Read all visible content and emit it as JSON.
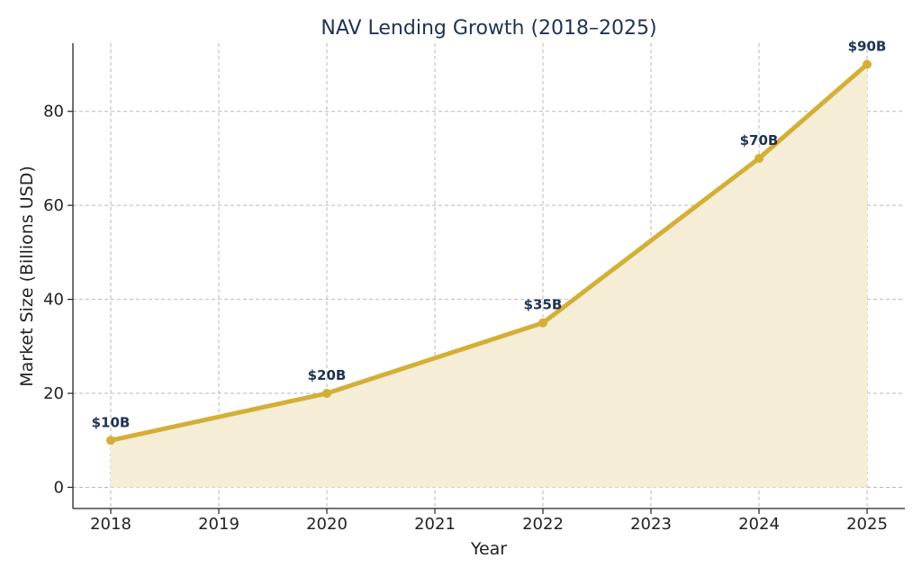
{
  "chart_data": {
    "type": "area",
    "title": "NAV Lending Growth (2018–2025)",
    "xlabel": "Year",
    "ylabel": "Market Size (Billions USD)",
    "x_ticks": [
      "2018",
      "2019",
      "2020",
      "2021",
      "2022",
      "2023",
      "2024",
      "2025"
    ],
    "y_ticks": [
      "0",
      "20",
      "40",
      "60",
      "80"
    ],
    "xlim": [
      2017.65,
      2025.35
    ],
    "ylim": [
      -4.5,
      94.5
    ],
    "grid": true,
    "series": [
      {
        "x": [
          2018,
          2020,
          2022,
          2024,
          2025
        ],
        "y": [
          10,
          20,
          35,
          70,
          90
        ],
        "labels": [
          "$10B",
          "$20B",
          "$35B",
          "$70B",
          "$90B"
        ],
        "color": "#d4af37",
        "fill_color": "#f5edd6"
      }
    ]
  }
}
